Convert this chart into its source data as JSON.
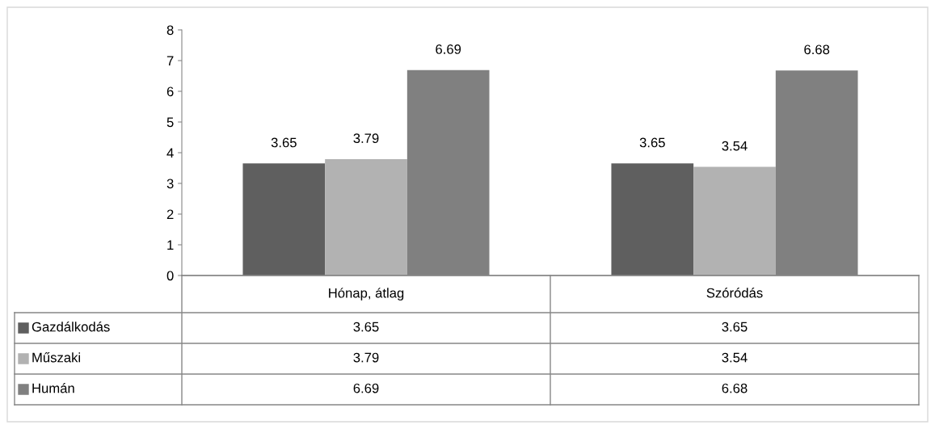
{
  "chart_data": {
    "type": "bar",
    "categories": [
      "Hónap, átlag",
      "Szóródás"
    ],
    "series": [
      {
        "name": "Gazdálkodás",
        "color": "#5f5f5f",
        "values": [
          3.65,
          3.65
        ],
        "value_labels": [
          "3.65",
          "3.65"
        ]
      },
      {
        "name": "Műszaki",
        "color": "#b2b2b2",
        "values": [
          3.79,
          3.54
        ],
        "value_labels": [
          "3.79",
          "3.54"
        ]
      },
      {
        "name": "Humán",
        "color": "#808080",
        "values": [
          6.69,
          6.68
        ],
        "value_labels": [
          "6.69",
          "6.68"
        ]
      }
    ],
    "ylim": [
      0,
      8
    ],
    "yticks": [
      0,
      1,
      2,
      3,
      4,
      5,
      6,
      7,
      8
    ],
    "annotations": [
      "3.65",
      "3.65",
      "3.79",
      "3.54",
      "6.69",
      "6.68"
    ],
    "legend": "bottom",
    "grid": false
  }
}
